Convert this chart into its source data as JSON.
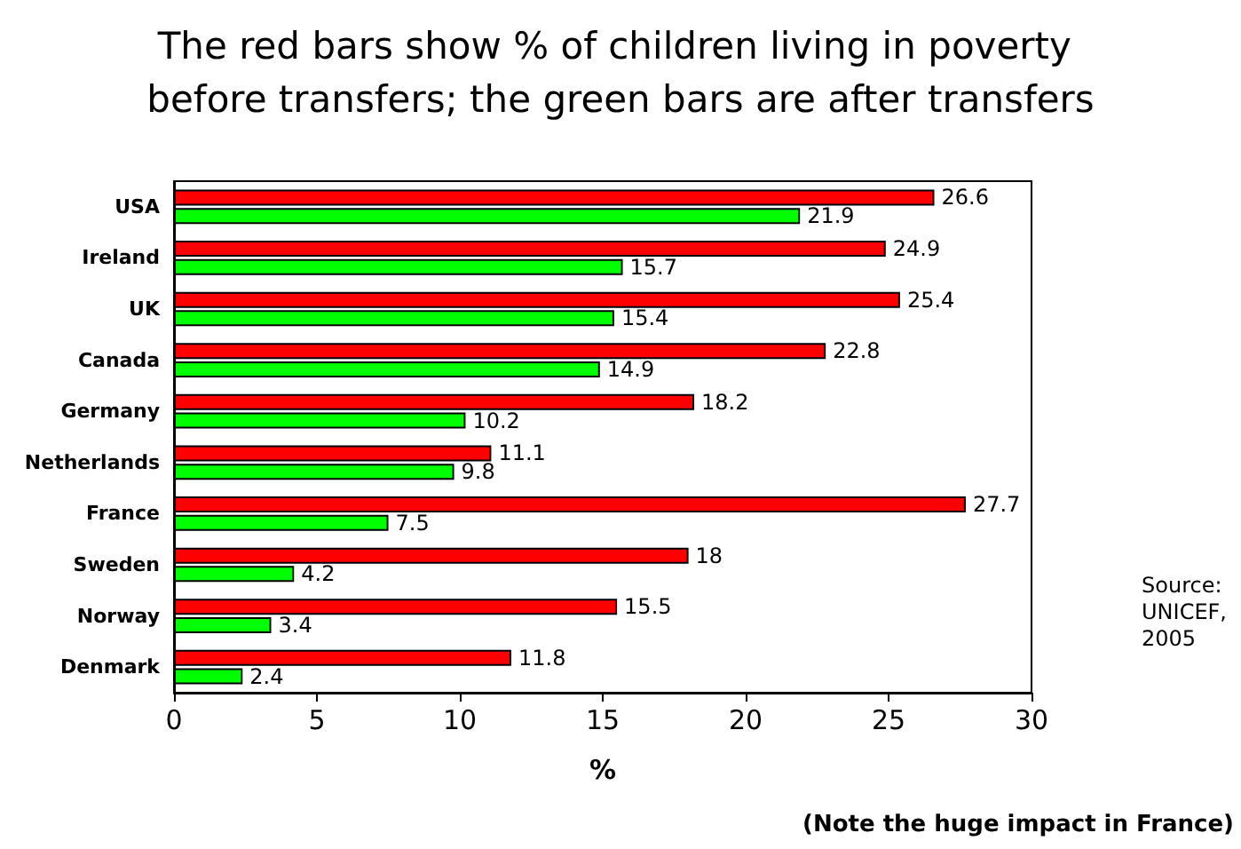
{
  "chart_data": {
    "type": "bar",
    "orientation": "horizontal",
    "title": "The red bars show % of children living in poverty before transfers; the green bars are after transfers",
    "xlabel": "%",
    "categories": [
      "USA",
      "Ireland",
      "UK",
      "Canada",
      "Germany",
      "Netherlands",
      "France",
      "Sweden",
      "Norway",
      "Denmark"
    ],
    "series": [
      {
        "color": "#ff0000",
        "values": [
          26.6,
          24.9,
          25.4,
          22.8,
          18.2,
          11.1,
          27.7,
          18,
          15.5,
          11.8
        ]
      },
      {
        "color": "#00ff00",
        "values": [
          21.9,
          15.7,
          15.4,
          14.9,
          10.2,
          9.8,
          7.5,
          4.2,
          3.4,
          2.4
        ]
      }
    ],
    "xlim": [
      0,
      30
    ],
    "xticks": [
      0,
      5,
      10,
      15,
      20,
      25,
      30
    ],
    "data_labels": true,
    "grid": false,
    "annotations": [
      "Source:\nUNICEF,\n2005",
      "(Note the huge impact in France)"
    ]
  }
}
